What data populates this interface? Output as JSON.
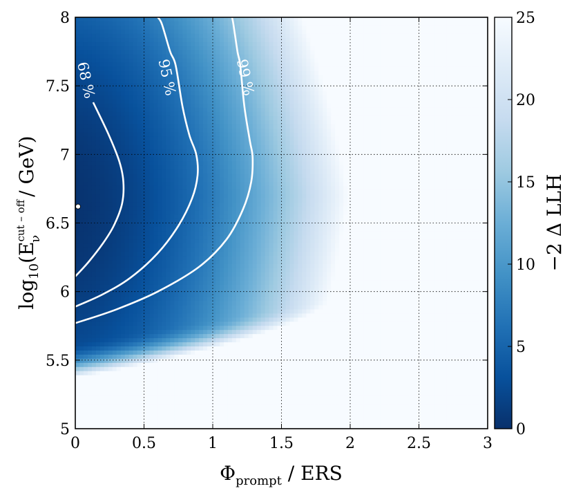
{
  "chart_data": {
    "type": "heatmap",
    "title": "",
    "xlabel": "Φ",
    "xlabel_sub": "prompt",
    "xlabel_rest": " / ERS",
    "ylabel": "log",
    "ylabel_sub1": "10",
    "ylabel_mid": "(E",
    "ylabel_sup": "cut – off",
    "ylabel_sub2": "ν",
    "ylabel_end": " / GeV)",
    "colorbar_label": "−2 Δ LLH",
    "xlim": [
      0,
      3
    ],
    "ylim": [
      5,
      8
    ],
    "zlim": [
      0,
      25
    ],
    "colormap": [
      "#08306b",
      "#08519c",
      "#2171b5",
      "#4292c6",
      "#6baed6",
      "#9ecae1",
      "#c6dbef",
      "#deebf7",
      "#f7fbff"
    ],
    "xticks": [
      "0",
      "0.5",
      "1",
      "1.5",
      "2",
      "2.5",
      "3"
    ],
    "yticks": [
      "5",
      "5.5",
      "6",
      "6.5",
      "7",
      "7.5",
      "8"
    ],
    "colorbar_ticks": [
      "0",
      "5",
      "10",
      "15",
      "20",
      "25"
    ],
    "grid": true,
    "best_fit": {
      "x": 0.02,
      "y": 6.62
    },
    "contours": [
      {
        "label": "68 %",
        "label_at": {
          "x": 0.07,
          "y": 7.54
        },
        "points": [
          [
            0.0,
            6.11
          ],
          [
            0.1,
            6.22
          ],
          [
            0.2,
            6.35
          ],
          [
            0.28,
            6.48
          ],
          [
            0.34,
            6.64
          ],
          [
            0.35,
            6.8
          ],
          [
            0.32,
            6.95
          ],
          [
            0.24,
            7.15
          ],
          [
            0.13,
            7.38
          ]
        ]
      },
      {
        "label": "95 %",
        "label_at": {
          "x": 0.66,
          "y": 7.56
        },
        "points": [
          [
            0.0,
            5.89
          ],
          [
            0.2,
            5.98
          ],
          [
            0.4,
            6.1
          ],
          [
            0.6,
            6.28
          ],
          [
            0.75,
            6.48
          ],
          [
            0.85,
            6.68
          ],
          [
            0.89,
            6.85
          ],
          [
            0.88,
            7.0
          ],
          [
            0.83,
            7.14
          ],
          [
            0.78,
            7.35
          ],
          [
            0.73,
            7.65
          ],
          [
            0.69,
            7.75
          ],
          [
            0.63,
            7.95
          ],
          [
            0.6,
            8.0
          ]
        ]
      },
      {
        "label": "99 %",
        "label_at": {
          "x": 1.23,
          "y": 7.56
        },
        "points": [
          [
            0.0,
            5.77
          ],
          [
            0.3,
            5.87
          ],
          [
            0.6,
            6.0
          ],
          [
            0.9,
            6.18
          ],
          [
            1.1,
            6.38
          ],
          [
            1.22,
            6.6
          ],
          [
            1.28,
            6.8
          ],
          [
            1.29,
            6.98
          ],
          [
            1.27,
            7.1
          ],
          [
            1.23,
            7.35
          ],
          [
            1.2,
            7.65
          ],
          [
            1.18,
            7.75
          ],
          [
            1.15,
            7.95
          ],
          [
            1.14,
            8.0
          ]
        ]
      }
    ]
  }
}
